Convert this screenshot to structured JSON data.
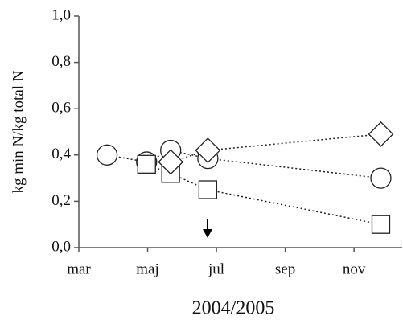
{
  "chart_data": {
    "type": "line",
    "xlabel": "2004/2005",
    "ylabel": "kg min N/kg total N",
    "xlim": [
      3,
      12.4
    ],
    "xticks": [
      {
        "value": 3,
        "label": "mar"
      },
      {
        "value": 5,
        "label": "maj"
      },
      {
        "value": 7,
        "label": "jul"
      },
      {
        "value": 9,
        "label": "sep"
      },
      {
        "value": 11,
        "label": "nov"
      }
    ],
    "ylim": [
      0,
      1
    ],
    "yticks": [
      {
        "value": 0,
        "label": "0,0"
      },
      {
        "value": 0.2,
        "label": "0,2"
      },
      {
        "value": 0.4,
        "label": "0,4"
      },
      {
        "value": 0.6,
        "label": "0,6"
      },
      {
        "value": 0.8,
        "label": "0,8"
      },
      {
        "value": 1,
        "label": "1,0"
      }
    ],
    "grid": false,
    "series": [
      {
        "marker": "circle",
        "color": "#222222",
        "x": [
          3.82,
          4.97,
          5.67,
          6.75,
          11.78
        ],
        "values": [
          0.4,
          0.37,
          0.42,
          0.385,
          0.3
        ]
      },
      {
        "marker": "square",
        "color": "#222222",
        "x": [
          4.97,
          5.67,
          6.75,
          11.78
        ],
        "values": [
          0.36,
          0.32,
          0.25,
          0.1
        ]
      },
      {
        "marker": "diamond",
        "color": "#222222",
        "x": [
          5.67,
          6.75,
          11.78
        ],
        "values": [
          0.37,
          0.42,
          0.49
        ]
      }
    ]
  }
}
